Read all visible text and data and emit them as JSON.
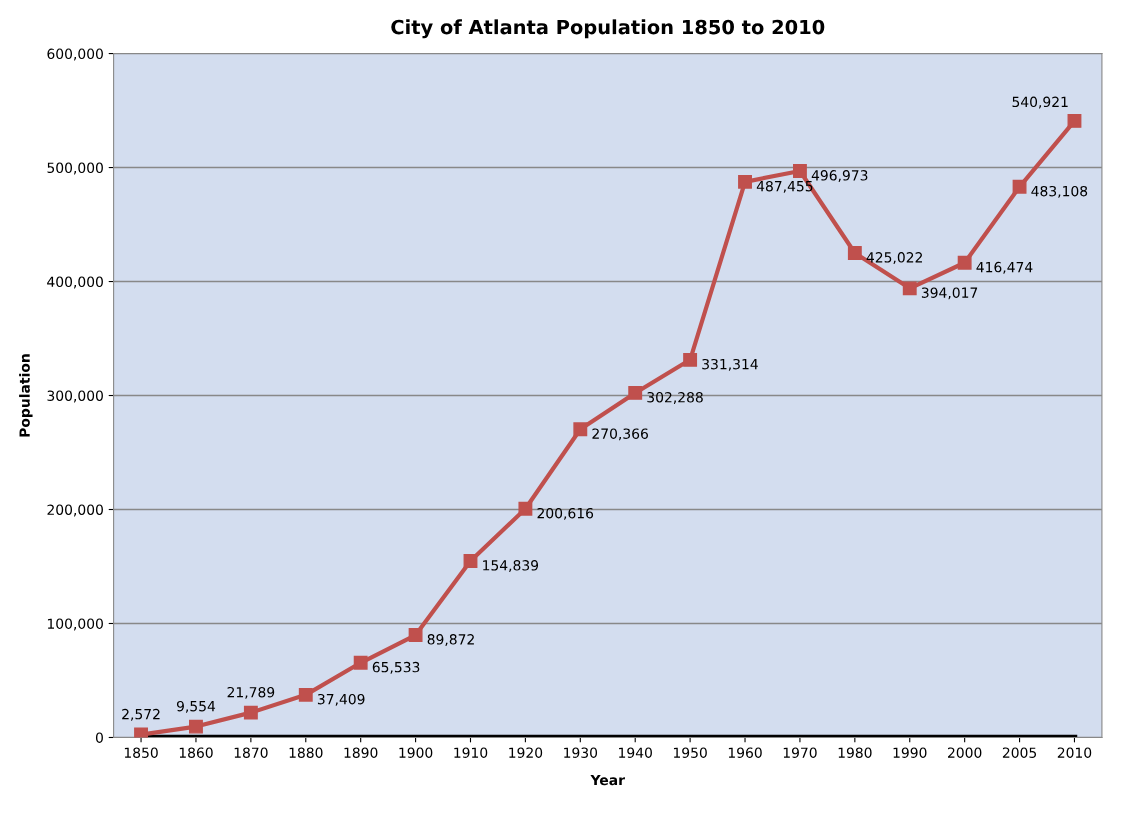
{
  "chart_data": {
    "type": "line",
    "title": "City of Atlanta Population 1850 to 2010",
    "xlabel": "Year",
    "ylabel": "Population",
    "categories": [
      "1850",
      "1860",
      "1870",
      "1880",
      "1890",
      "1900",
      "1910",
      "1920",
      "1930",
      "1940",
      "1950",
      "1960",
      "1970",
      "1980",
      "1990",
      "2000",
      "2005",
      "2010"
    ],
    "series": [
      {
        "color": "#c0504d",
        "marker": "square",
        "values": [
          2572,
          9554,
          21789,
          37409,
          65533,
          89872,
          154839,
          200616,
          270366,
          302288,
          331314,
          487455,
          496973,
          425022,
          394017,
          416474,
          483108,
          540921
        ],
        "value_labels": [
          "2,572",
          "9,554",
          "21,789",
          "37,409",
          "65,533",
          "89,872",
          "154,839",
          "200,616",
          "270,366",
          "302,288",
          "331,314",
          "487,455",
          "496,973",
          "425,022",
          "394,017",
          "416,474",
          "483,108",
          "540,921"
        ]
      },
      {
        "color": "#000000",
        "marker": "none",
        "values": [
          0,
          0,
          0,
          0,
          0,
          0,
          0,
          0,
          0,
          0,
          0,
          0,
          0,
          0,
          0,
          0,
          0,
          0
        ]
      }
    ],
    "ylim": [
      0,
      600000
    ],
    "yticks": [
      {
        "value": 0,
        "label": "0"
      },
      {
        "value": 100000,
        "label": "100,000"
      },
      {
        "value": 200000,
        "label": "200,000"
      },
      {
        "value": 300000,
        "label": "300,000"
      },
      {
        "value": 400000,
        "label": "400,000"
      },
      {
        "value": 500000,
        "label": "500,000"
      },
      {
        "value": 600000,
        "label": "600,000"
      }
    ],
    "grid": "y",
    "legend": false
  }
}
